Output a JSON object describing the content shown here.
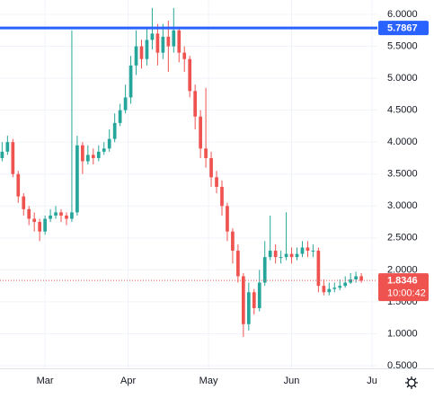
{
  "chart_data": {
    "type": "candlestick",
    "x": [
      -16,
      -14,
      -12,
      -10,
      -8,
      -6,
      -4,
      -2,
      0,
      2,
      4,
      6,
      8,
      10,
      12,
      14,
      16,
      18,
      20,
      22,
      24,
      26,
      28,
      30,
      32,
      34,
      36,
      38,
      40,
      42,
      44,
      46,
      48,
      50,
      52,
      54,
      56,
      58,
      60,
      62,
      64,
      66,
      68,
      70,
      72,
      74,
      76,
      78,
      80,
      82,
      84,
      86,
      88,
      90,
      92,
      94,
      96,
      98,
      100,
      102,
      104,
      106,
      108,
      110,
      112,
      114,
      116,
      118
    ],
    "open": [
      3.75,
      3.85,
      4.0,
      3.5,
      3.15,
      2.95,
      2.8,
      2.75,
      2.6,
      2.8,
      2.85,
      2.9,
      2.85,
      2.8,
      2.9,
      3.95,
      3.7,
      3.8,
      3.75,
      3.85,
      3.9,
      4.05,
      4.3,
      4.5,
      4.7,
      5.2,
      5.5,
      5.3,
      5.6,
      5.7,
      5.4,
      5.65,
      5.5,
      5.75,
      5.4,
      5.3,
      4.8,
      4.4,
      3.9,
      3.75,
      3.45,
      3.3,
      3.0,
      2.6,
      2.3,
      1.9,
      1.15,
      1.65,
      1.4,
      1.8,
      2.2,
      2.3,
      2.2,
      2.2,
      2.25,
      2.2,
      2.25,
      2.35,
      2.3,
      2.3,
      1.75,
      1.65,
      1.7,
      1.72,
      1.75,
      1.8,
      1.85,
      1.9
    ],
    "high": [
      4.0,
      4.1,
      4.05,
      3.55,
      3.2,
      3.0,
      2.9,
      2.8,
      2.85,
      2.95,
      3.0,
      2.95,
      2.9,
      5.75,
      4.1,
      4.0,
      3.95,
      3.9,
      3.95,
      4.0,
      4.2,
      4.45,
      4.6,
      4.9,
      5.35,
      5.75,
      5.6,
      5.8,
      6.1,
      5.85,
      5.85,
      5.9,
      6.1,
      5.8,
      5.5,
      5.35,
      4.9,
      4.5,
      4.85,
      3.85,
      3.55,
      3.4,
      3.05,
      2.65,
      2.4,
      1.95,
      1.8,
      1.7,
      2.0,
      2.45,
      2.85,
      2.4,
      2.3,
      2.9,
      2.35,
      2.35,
      2.45,
      2.45,
      2.4,
      2.35,
      1.85,
      1.8,
      1.8,
      1.85,
      1.9,
      1.95,
      1.97,
      1.95
    ],
    "low": [
      3.7,
      3.8,
      3.45,
      3.05,
      2.85,
      2.7,
      2.6,
      2.45,
      2.55,
      2.75,
      2.8,
      2.75,
      2.7,
      2.75,
      2.85,
      3.5,
      3.65,
      3.65,
      3.7,
      3.8,
      3.85,
      4.0,
      4.25,
      4.45,
      4.6,
      5.05,
      5.15,
      5.2,
      5.45,
      5.2,
      5.3,
      5.1,
      5.4,
      5.25,
      5.1,
      4.7,
      4.2,
      3.75,
      3.6,
      3.3,
      3.2,
      2.85,
      2.45,
      2.1,
      1.8,
      0.95,
      1.05,
      1.3,
      1.35,
      1.75,
      2.15,
      2.1,
      2.1,
      2.15,
      2.1,
      2.15,
      2.2,
      2.2,
      2.2,
      1.65,
      1.6,
      1.6,
      1.65,
      1.68,
      1.72,
      1.78,
      1.8,
      1.8
    ],
    "close": [
      3.85,
      4.0,
      3.5,
      3.15,
      2.95,
      2.8,
      2.75,
      2.6,
      2.8,
      2.85,
      2.9,
      2.85,
      2.8,
      2.9,
      3.95,
      3.7,
      3.8,
      3.75,
      3.85,
      3.9,
      4.05,
      4.3,
      4.5,
      4.7,
      5.2,
      5.5,
      5.3,
      5.6,
      5.7,
      5.4,
      5.65,
      5.5,
      5.75,
      5.4,
      5.3,
      4.8,
      4.4,
      3.9,
      3.75,
      3.45,
      3.3,
      3.0,
      2.6,
      2.3,
      1.9,
      1.15,
      1.65,
      1.4,
      1.8,
      2.2,
      2.3,
      2.2,
      2.2,
      2.25,
      2.2,
      2.25,
      2.35,
      2.3,
      2.3,
      1.75,
      1.65,
      1.7,
      1.72,
      1.75,
      1.8,
      1.85,
      1.9,
      1.83
    ],
    "up_color": "#26a69a",
    "down_color": "#ef5350",
    "xlim": [
      -16.8,
      124
    ],
    "xticks": [
      {
        "value": 0,
        "label": "Mar"
      },
      {
        "value": 31,
        "label": "Apr"
      },
      {
        "value": 61,
        "label": "May"
      },
      {
        "value": 92,
        "label": "Jun"
      },
      {
        "value": 122,
        "label": "Ju"
      }
    ],
    "ylim": [
      0.4,
      6.2
    ],
    "yticks": [
      {
        "value": 6,
        "label": "6.0000"
      },
      {
        "value": 5.5,
        "label": "5.5000"
      },
      {
        "value": 5,
        "label": "5.0000"
      },
      {
        "value": 4.5,
        "label": "4.5000"
      },
      {
        "value": 4,
        "label": "4.0000"
      },
      {
        "value": 3.5,
        "label": "3.5000"
      },
      {
        "value": 3,
        "label": "3.0000"
      },
      {
        "value": 2.5,
        "label": "2.5000"
      },
      {
        "value": 2,
        "label": "2.0000"
      },
      {
        "value": 1.5,
        "label": "1.5000"
      },
      {
        "value": 1,
        "label": "1.0000"
      },
      {
        "value": 0.5,
        "label": "0.5000"
      }
    ],
    "grid": true,
    "price_line": {
      "value": 5.7867,
      "label": "5.7867",
      "color": "#2962ff"
    },
    "last_price": {
      "value": 1.8346,
      "label": "1.8346",
      "color": "#ef5350"
    },
    "countdown": "10:00:42"
  }
}
